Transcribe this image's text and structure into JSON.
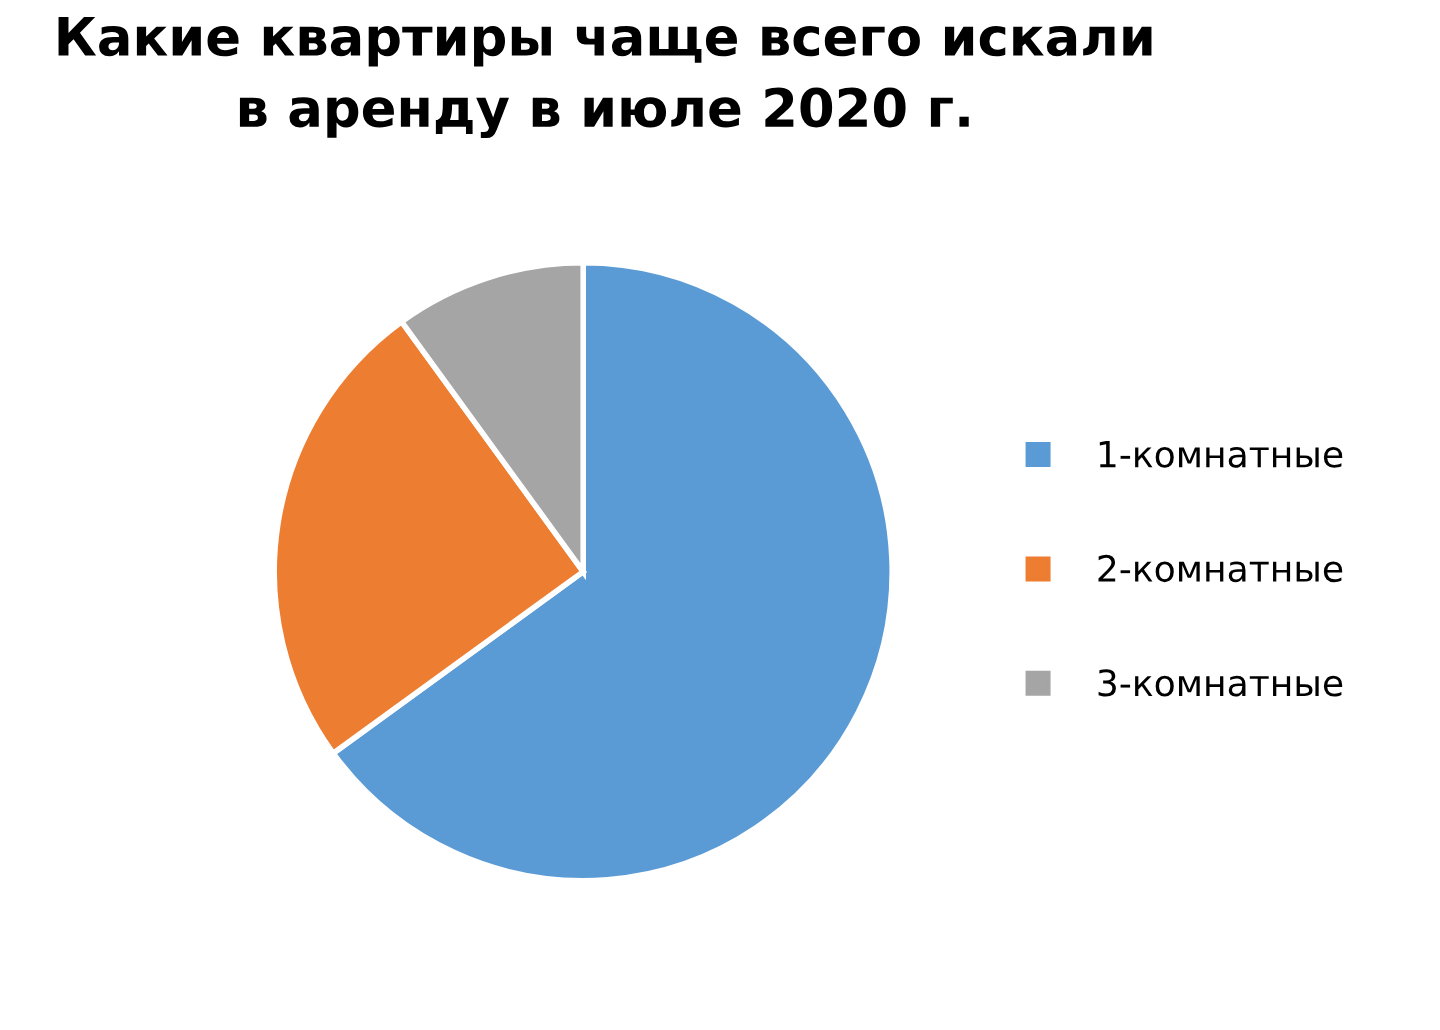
{
  "chart_data": {
    "type": "pie",
    "title": "Какие квартиры чаще всего искали\nв аренду в июле 2020 г.",
    "categories": [
      "1-комнатные",
      "2-комнатные",
      "3-комнатные"
    ],
    "values": [
      65,
      25,
      10
    ],
    "colors": [
      "#5b9bd5",
      "#ed7d31",
      "#a5a5a5"
    ],
    "legend": "right"
  }
}
